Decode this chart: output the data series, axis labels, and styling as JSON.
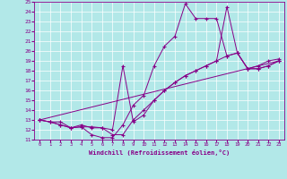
{
  "xlabel": "Windchill (Refroidissement éolien,°C)",
  "background_color": "#b2e8e8",
  "line_color": "#880088",
  "xlim": [
    -0.5,
    23.5
  ],
  "ylim": [
    11,
    25
  ],
  "xticks": [
    0,
    1,
    2,
    3,
    4,
    5,
    6,
    7,
    8,
    9,
    10,
    11,
    12,
    13,
    14,
    15,
    16,
    17,
    18,
    19,
    20,
    21,
    22,
    23
  ],
  "yticks": [
    11,
    12,
    13,
    14,
    15,
    16,
    17,
    18,
    19,
    20,
    21,
    22,
    23,
    24,
    25
  ],
  "lines": [
    {
      "x": [
        0,
        1,
        2,
        3,
        4,
        5,
        6,
        7,
        8,
        9,
        10,
        11,
        12,
        13,
        14,
        15,
        16,
        17,
        18,
        19,
        20,
        21,
        22,
        23
      ],
      "y": [
        13,
        12.8,
        12.8,
        12.2,
        12.3,
        11.5,
        11.2,
        11.2,
        12.5,
        14.5,
        15.5,
        18.5,
        20.5,
        21.5,
        24.8,
        23.3,
        23.3,
        23.3,
        19.5,
        19.8,
        18.2,
        18.5,
        19.0,
        19.2
      ]
    },
    {
      "x": [
        0,
        1,
        2,
        3,
        4,
        5,
        6,
        7,
        8,
        9,
        10,
        11,
        12,
        13,
        14,
        15,
        16,
        17,
        18,
        19,
        20,
        21,
        22,
        23
      ],
      "y": [
        13,
        12.8,
        12.5,
        12.2,
        12.5,
        12.2,
        12.2,
        11.5,
        11.5,
        13.0,
        14.0,
        15.0,
        16.0,
        16.8,
        17.5,
        18.0,
        18.5,
        19.0,
        19.5,
        19.8,
        18.2,
        18.2,
        18.5,
        19.0
      ]
    },
    {
      "x": [
        0,
        1,
        2,
        3,
        4,
        5,
        6,
        7,
        8,
        9,
        10,
        11,
        12,
        13,
        14,
        15,
        16,
        17,
        18,
        19,
        20,
        21,
        22,
        23
      ],
      "y": [
        13,
        12.8,
        12.5,
        12.2,
        12.3,
        12.3,
        12.2,
        12.0,
        18.5,
        12.8,
        13.5,
        15.0,
        16.0,
        16.8,
        17.5,
        18.0,
        18.5,
        19.0,
        24.5,
        19.8,
        18.2,
        18.2,
        18.5,
        19.0
      ]
    },
    {
      "x": [
        0,
        23
      ],
      "y": [
        13,
        19.0
      ]
    }
  ]
}
